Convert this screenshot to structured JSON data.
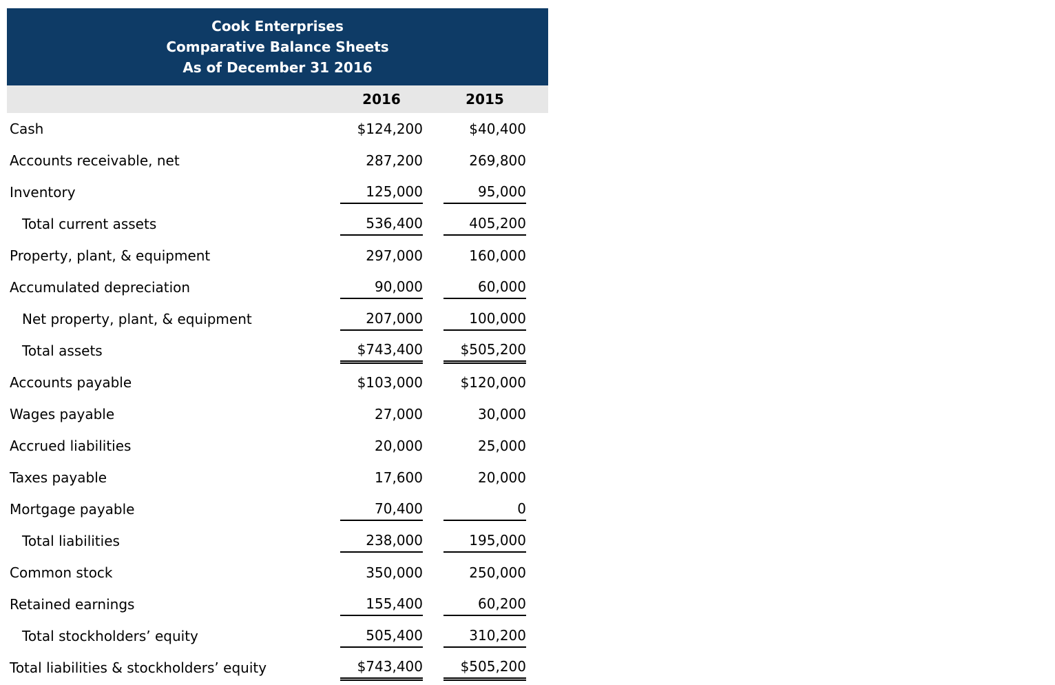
{
  "colors": {
    "header_bg": "#0e3b66",
    "header_text": "#ffffff",
    "column_header_bg": "#e7e7e7",
    "body_text": "#000000"
  },
  "header": {
    "lines": [
      "Cook Enterprises",
      "Comparative Balance Sheets",
      "As of December 31 2016"
    ]
  },
  "columns": [
    "2016",
    "2015"
  ],
  "rows": [
    {
      "label": "Cash",
      "indent": false,
      "values": [
        "$124,200",
        "$40,400"
      ],
      "underline": "none"
    },
    {
      "label": "Accounts receivable, net",
      "indent": false,
      "values": [
        "287,200",
        "269,800"
      ],
      "underline": "none"
    },
    {
      "label": "Inventory",
      "indent": false,
      "values": [
        "125,000",
        "95,000"
      ],
      "underline": "single"
    },
    {
      "label": "Total current assets",
      "indent": true,
      "values": [
        "536,400",
        "405,200"
      ],
      "underline": "single"
    },
    {
      "label": "Property, plant, & equipment",
      "indent": false,
      "values": [
        "297,000",
        "160,000"
      ],
      "underline": "none"
    },
    {
      "label": "Accumulated depreciation",
      "indent": false,
      "values": [
        "90,000",
        "60,000"
      ],
      "underline": "single"
    },
    {
      "label": "Net property, plant, & equipment",
      "indent": true,
      "values": [
        "207,000",
        "100,000"
      ],
      "underline": "single"
    },
    {
      "label": "Total assets",
      "indent": true,
      "values": [
        "$743,400",
        "$505,200"
      ],
      "underline": "double"
    },
    {
      "label": "Accounts payable",
      "indent": false,
      "values": [
        "$103,000",
        "$120,000"
      ],
      "underline": "none"
    },
    {
      "label": "Wages payable",
      "indent": false,
      "values": [
        "27,000",
        "30,000"
      ],
      "underline": "none"
    },
    {
      "label": "Accrued liabilities",
      "indent": false,
      "values": [
        "20,000",
        "25,000"
      ],
      "underline": "none"
    },
    {
      "label": "Taxes payable",
      "indent": false,
      "values": [
        "17,600",
        "20,000"
      ],
      "underline": "none"
    },
    {
      "label": "Mortgage payable",
      "indent": false,
      "values": [
        "70,400",
        "0"
      ],
      "underline": "single"
    },
    {
      "label": "Total liabilities",
      "indent": true,
      "values": [
        "238,000",
        "195,000"
      ],
      "underline": "single"
    },
    {
      "label": "Common stock",
      "indent": false,
      "values": [
        "350,000",
        "250,000"
      ],
      "underline": "none"
    },
    {
      "label": "Retained earnings",
      "indent": false,
      "values": [
        "155,400",
        "60,200"
      ],
      "underline": "single"
    },
    {
      "label": "Total stockholders’ equity",
      "indent": true,
      "values": [
        "505,400",
        "310,200"
      ],
      "underline": "single"
    },
    {
      "label": "Total liabilities & stockholders’ equity",
      "indent": false,
      "values": [
        "$743,400",
        "$505,200"
      ],
      "underline": "double"
    }
  ]
}
